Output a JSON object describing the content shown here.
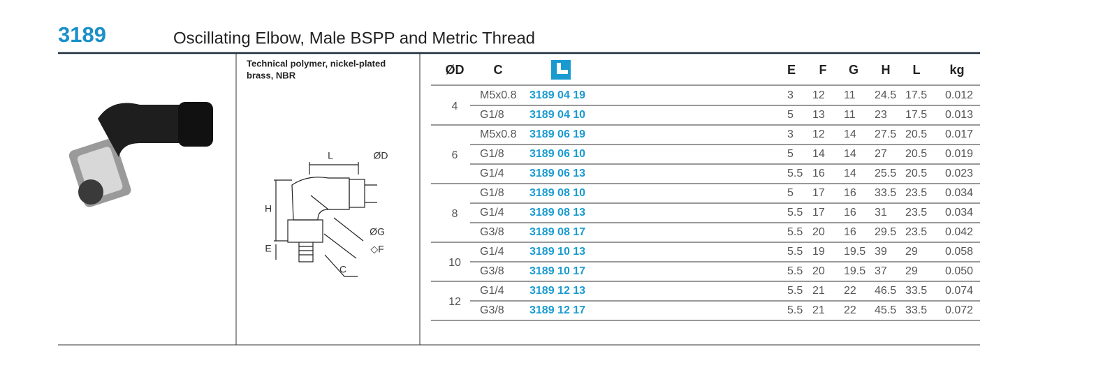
{
  "header": {
    "code": "3189",
    "title": "Oscillating Elbow, Male BSPP and Metric Thread"
  },
  "material": [
    "Technical polymer, nickel-plated",
    "brass, NBR"
  ],
  "diagram": {
    "labels": [
      "L",
      "ØD",
      "H",
      "ØG",
      "E",
      "◇F",
      "C"
    ]
  },
  "table": {
    "columns": [
      "ØD",
      "C",
      "E",
      "F",
      "G",
      "H",
      "L",
      "kg"
    ],
    "groups": [
      {
        "od": "4",
        "rows": [
          [
            "M5x0.8",
            "3189 04 19",
            "3",
            "12",
            "11",
            "24.5",
            "17.5",
            "0.012"
          ],
          [
            "G1/8",
            "3189 04 10",
            "5",
            "13",
            "11",
            "23",
            "17.5",
            "0.013"
          ]
        ]
      },
      {
        "od": "6",
        "rows": [
          [
            "M5x0.8",
            "3189 06 19",
            "3",
            "12",
            "14",
            "27.5",
            "20.5",
            "0.017"
          ],
          [
            "G1/8",
            "3189 06 10",
            "5",
            "14",
            "14",
            "27",
            "20.5",
            "0.019"
          ],
          [
            "G1/4",
            "3189 06 13",
            "5.5",
            "16",
            "14",
            "25.5",
            "20.5",
            "0.023"
          ]
        ]
      },
      {
        "od": "8",
        "rows": [
          [
            "G1/8",
            "3189 08 10",
            "5",
            "17",
            "16",
            "33.5",
            "23.5",
            "0.034"
          ],
          [
            "G1/4",
            "3189 08 13",
            "5.5",
            "17",
            "16",
            "31",
            "23.5",
            "0.034"
          ],
          [
            "G3/8",
            "3189 08 17",
            "5.5",
            "20",
            "16",
            "29.5",
            "23.5",
            "0.042"
          ]
        ]
      },
      {
        "od": "10",
        "rows": [
          [
            "G1/4",
            "3189 10 13",
            "5.5",
            "19",
            "19.5",
            "39",
            "29",
            "0.058"
          ],
          [
            "G3/8",
            "3189 10 17",
            "5.5",
            "20",
            "19.5",
            "37",
            "29",
            "0.050"
          ]
        ]
      },
      {
        "od": "12",
        "rows": [
          [
            "G1/4",
            "3189 12 13",
            "5.5",
            "21",
            "22",
            "46.5",
            "33.5",
            "0.074"
          ],
          [
            "G3/8",
            "3189 12 17",
            "5.5",
            "21",
            "22",
            "45.5",
            "33.5",
            "0.072"
          ]
        ]
      }
    ]
  }
}
